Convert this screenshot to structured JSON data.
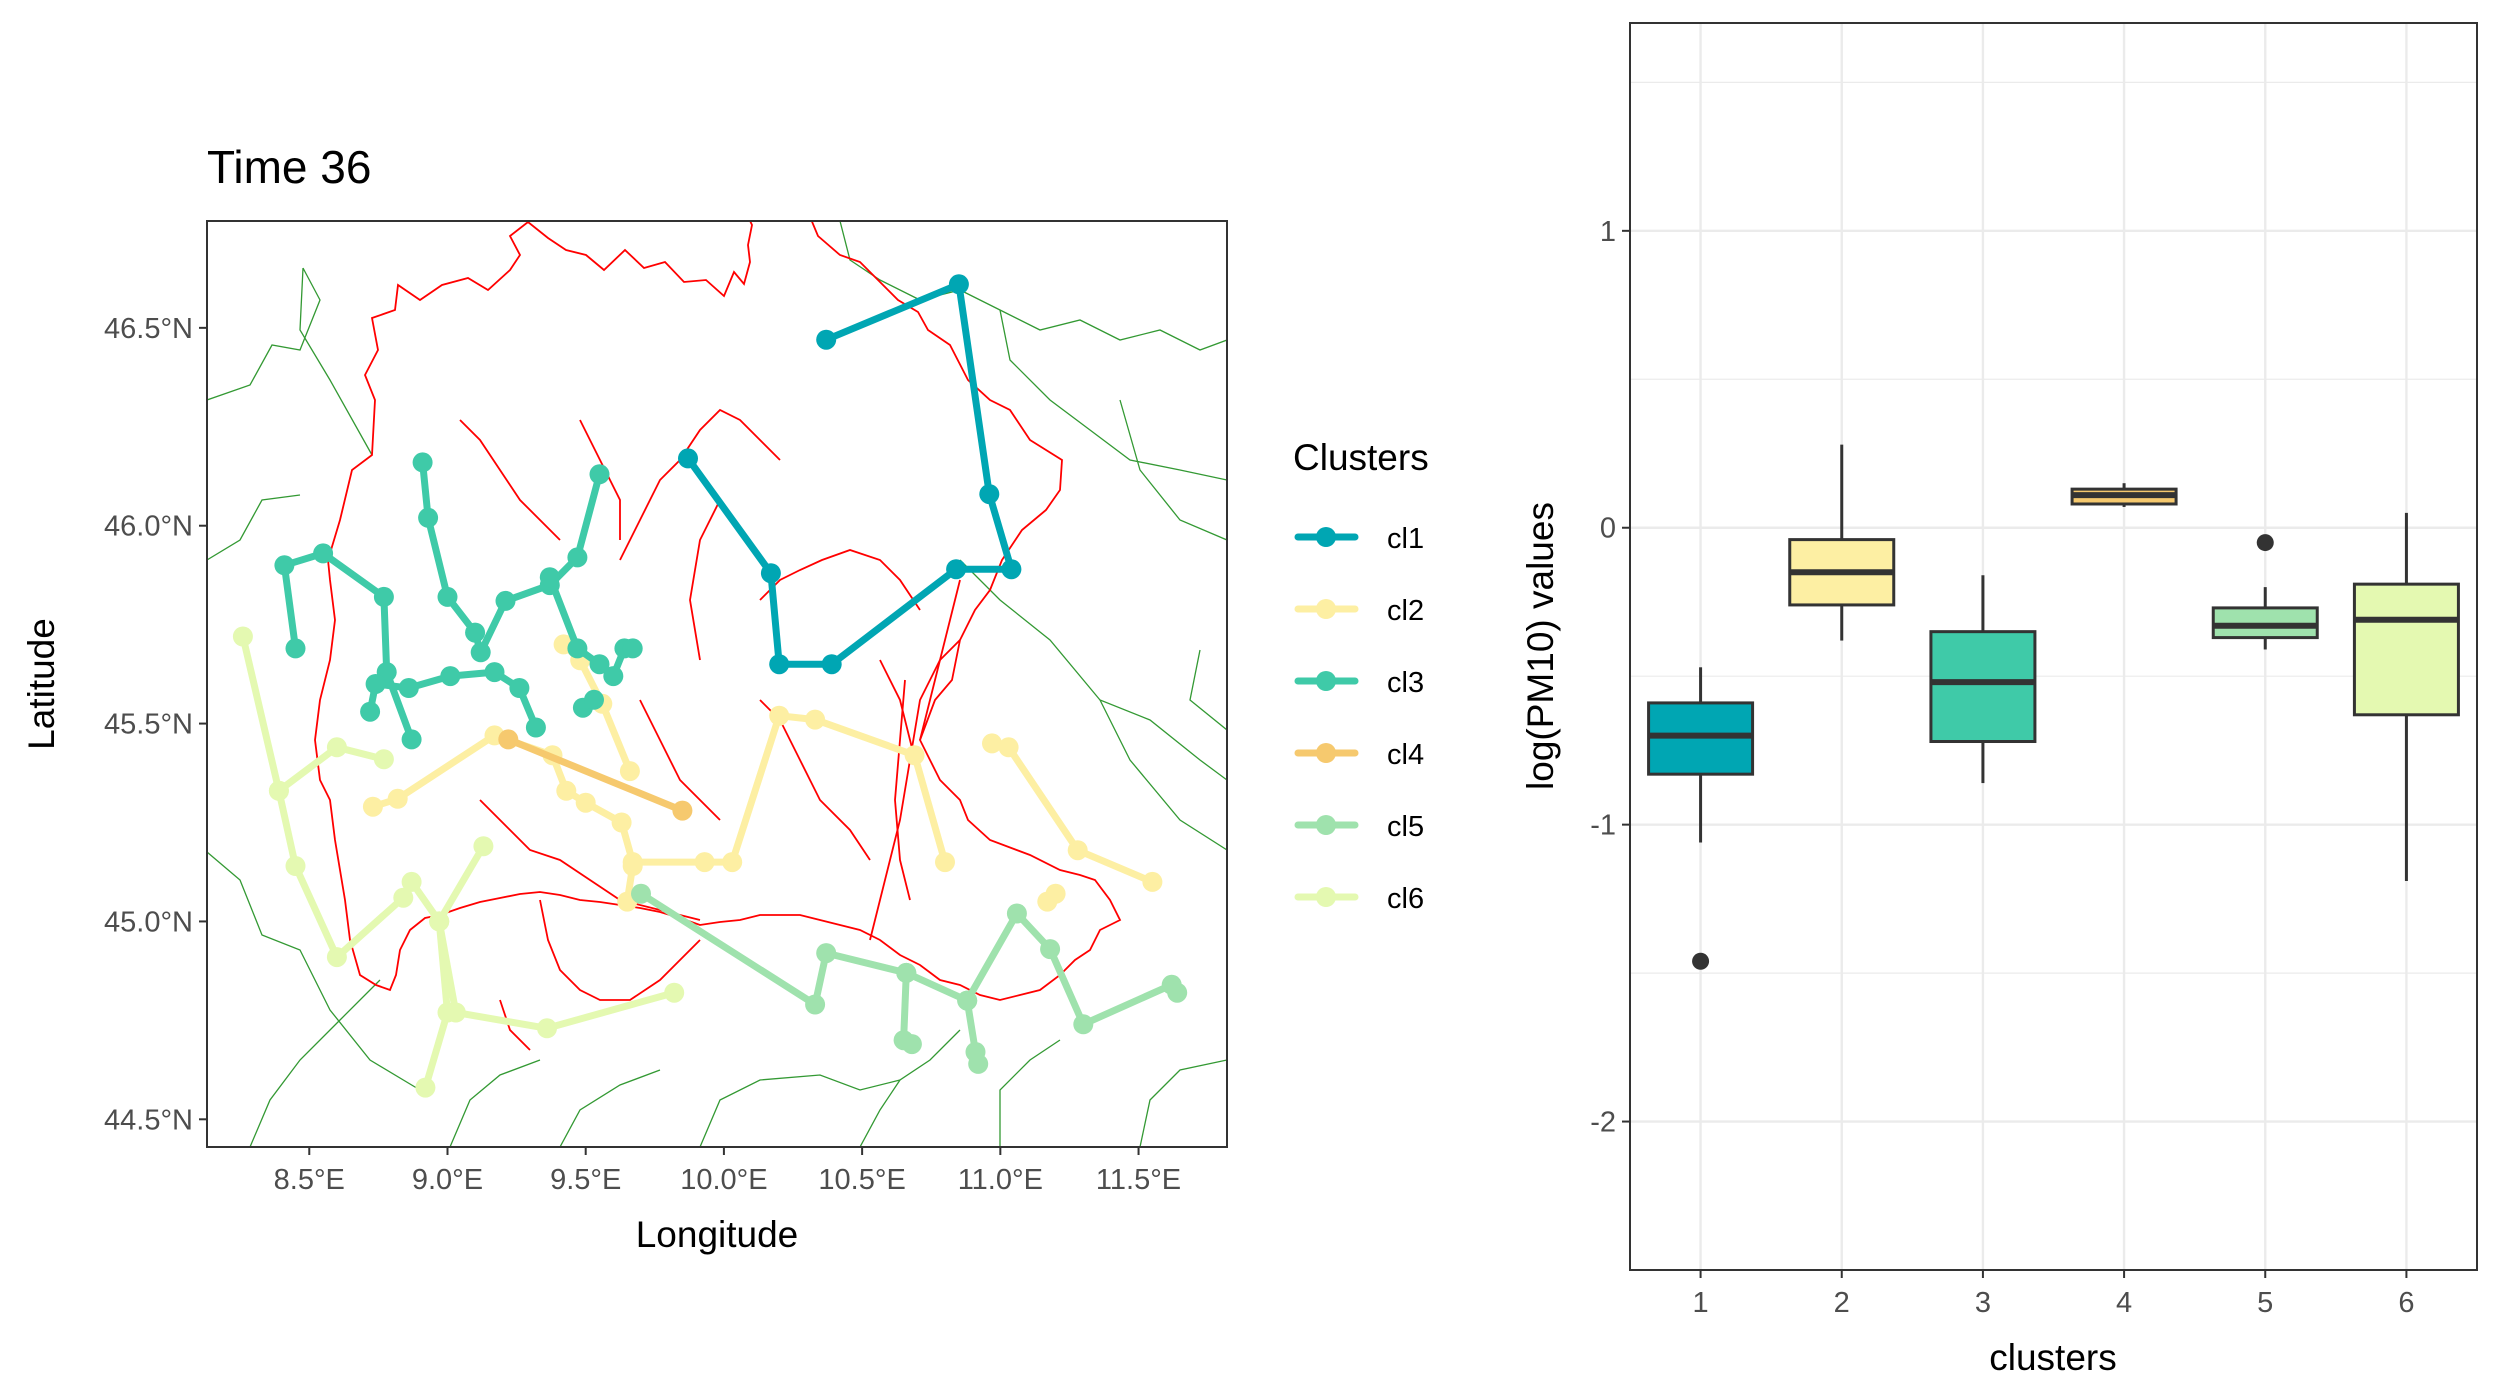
{
  "chart_data": [
    {
      "type": "scatter",
      "subtype": "map",
      "title": "Time 36",
      "xlabel": "Longitude",
      "ylabel": "Latitude",
      "xlim": [
        8.13,
        11.82
      ],
      "ylim": [
        44.43,
        46.77
      ],
      "x_ticks": [
        8.5,
        9.0,
        9.5,
        10.0,
        10.5,
        11.0,
        11.5
      ],
      "x_tick_labels": [
        "8.5°E",
        "9.0°E",
        "9.5°E",
        "10.0°E",
        "10.5°E",
        "11.0°E",
        "11.5°E"
      ],
      "y_ticks": [
        44.5,
        45.0,
        45.5,
        46.0,
        46.5
      ],
      "y_tick_labels": [
        "44.5°N",
        "45.0°N",
        "45.5°N",
        "46.0°N",
        "46.5°N"
      ],
      "legend": {
        "title": "Clusters",
        "position": "right",
        "entries": [
          "cl1",
          "cl2",
          "cl3",
          "cl4",
          "cl5",
          "cl6"
        ]
      },
      "grid": false,
      "boundary_colors": {
        "region_outline": "#ff0000",
        "province_lines": "#339933"
      },
      "series": [
        {
          "name": "cl1",
          "color": "#00a6b3",
          "segments": [
            [
              [
                10.37,
                46.47
              ],
              [
                10.85,
                46.61
              ],
              [
                10.96,
                46.08
              ],
              [
                11.04,
                45.89
              ],
              [
                10.84,
                45.89
              ],
              [
                10.39,
                45.65
              ],
              [
                10.2,
                45.65
              ],
              [
                10.17,
                45.88
              ],
              [
                9.87,
                46.17
              ]
            ]
          ]
        },
        {
          "name": "cl2",
          "color": "#fdefa3",
          "segments": [
            [
              [
                8.73,
                45.29
              ],
              [
                8.82,
                45.31
              ],
              [
                9.17,
                45.47
              ],
              [
                9.38,
                45.42
              ],
              [
                9.43,
                45.33
              ],
              [
                9.5,
                45.3
              ],
              [
                9.63,
                45.25
              ],
              [
                9.67,
                45.15
              ],
              [
                9.93,
                45.15
              ],
              [
                10.03,
                45.15
              ],
              [
                10.2,
                45.52
              ],
              [
                10.33,
                45.51
              ],
              [
                10.69,
                45.42
              ],
              [
                10.8,
                45.15
              ]
            ],
            [
              [
                9.42,
                45.7
              ],
              [
                9.48,
                45.66
              ],
              [
                9.56,
                45.55
              ],
              [
                9.66,
                45.38
              ]
            ],
            [
              [
                10.97,
                45.45
              ],
              [
                11.03,
                45.44
              ],
              [
                11.28,
                45.18
              ],
              [
                11.55,
                45.1
              ]
            ],
            [
              [
                9.65,
                45.05
              ],
              [
                9.67,
                45.14
              ]
            ],
            [
              [
                11.17,
                45.05
              ],
              [
                11.2,
                45.07
              ]
            ]
          ]
        },
        {
          "name": "cl3",
          "color": "#3fcaa8",
          "segments": [
            [
              [
                8.45,
                45.69
              ],
              [
                8.41,
                45.9
              ],
              [
                8.55,
                45.93
              ],
              [
                8.77,
                45.82
              ],
              [
                8.78,
                45.63
              ],
              [
                8.87,
                45.46
              ]
            ],
            [
              [
                8.91,
                46.16
              ],
              [
                8.93,
                46.02
              ],
              [
                9.0,
                45.82
              ],
              [
                9.1,
                45.73
              ],
              [
                9.12,
                45.68
              ],
              [
                9.21,
                45.81
              ],
              [
                9.37,
                45.85
              ],
              [
                9.47,
                45.92
              ],
              [
                9.55,
                46.13
              ]
            ],
            [
              [
                8.72,
                45.53
              ],
              [
                8.74,
                45.6
              ],
              [
                8.86,
                45.59
              ],
              [
                9.01,
                45.62
              ],
              [
                9.17,
                45.63
              ],
              [
                9.26,
                45.59
              ],
              [
                9.32,
                45.49
              ]
            ],
            [
              [
                9.37,
                45.87
              ],
              [
                9.47,
                45.69
              ],
              [
                9.55,
                45.65
              ],
              [
                9.6,
                45.62
              ],
              [
                9.64,
                45.69
              ],
              [
                9.67,
                45.69
              ]
            ],
            [
              [
                9.49,
                45.54
              ],
              [
                9.53,
                45.56
              ]
            ]
          ]
        },
        {
          "name": "cl4",
          "color": "#f6c96e",
          "segments": [
            [
              [
                9.22,
                45.46
              ],
              [
                9.85,
                45.28
              ]
            ]
          ]
        },
        {
          "name": "cl5",
          "color": "#9fe2ad",
          "segments": [
            [
              [
                9.7,
                45.07
              ],
              [
                10.33,
                44.79
              ],
              [
                10.37,
                44.92
              ],
              [
                10.66,
                44.87
              ],
              [
                10.65,
                44.7
              ],
              [
                10.68,
                44.69
              ]
            ],
            [
              [
                10.66,
                44.87
              ],
              [
                10.88,
                44.8
              ],
              [
                10.91,
                44.67
              ],
              [
                10.92,
                44.64
              ]
            ],
            [
              [
                10.88,
                44.8
              ],
              [
                11.06,
                45.02
              ],
              [
                11.18,
                44.93
              ],
              [
                11.3,
                44.74
              ],
              [
                11.62,
                44.84
              ],
              [
                11.64,
                44.82
              ]
            ]
          ]
        },
        {
          "name": "cl6",
          "color": "#e4f9b1",
          "segments": [
            [
              [
                8.26,
                45.72
              ],
              [
                8.39,
                45.33
              ],
              [
                8.45,
                45.14
              ],
              [
                8.6,
                44.91
              ],
              [
                8.84,
                45.06
              ],
              [
                8.87,
                45.1
              ],
              [
                8.97,
                45.0
              ],
              [
                9.03,
                44.77
              ],
              [
                9.36,
                44.73
              ],
              [
                9.82,
                44.82
              ]
            ],
            [
              [
                8.39,
                45.33
              ],
              [
                8.6,
                45.44
              ],
              [
                8.77,
                45.41
              ]
            ],
            [
              [
                8.97,
                45.0
              ],
              [
                9.0,
                44.77
              ],
              [
                8.92,
                44.58
              ]
            ],
            [
              [
                8.97,
                45.0
              ],
              [
                9.13,
                45.19
              ]
            ]
          ]
        }
      ]
    },
    {
      "type": "box",
      "title": "",
      "xlabel": "clusters",
      "ylabel": "log(PM10) values",
      "categories": [
        "1",
        "2",
        "3",
        "4",
        "5",
        "6"
      ],
      "ylim": [
        -2.5,
        1.7
      ],
      "y_ticks": [
        1,
        0,
        -1,
        -2
      ],
      "y_tick_labels": [
        "1",
        "0",
        "-1",
        "-2"
      ],
      "grid": true,
      "boxes": [
        {
          "category": "1",
          "color": "#00a6b3",
          "whisker_low": -1.06,
          "q1": -0.83,
          "median": -0.7,
          "q3": -0.59,
          "whisker_high": -0.47,
          "outliers": [
            -1.46
          ]
        },
        {
          "category": "2",
          "color": "#fdefa3",
          "whisker_low": -0.38,
          "q1": -0.26,
          "median": -0.15,
          "q3": -0.04,
          "whisker_high": 0.28,
          "outliers": []
        },
        {
          "category": "3",
          "color": "#3fcaa8",
          "whisker_low": -0.86,
          "q1": -0.72,
          "median": -0.52,
          "q3": -0.35,
          "whisker_high": -0.16,
          "outliers": []
        },
        {
          "category": "4",
          "color": "#f6c96e",
          "whisker_low": 0.07,
          "q1": 0.08,
          "median": 0.11,
          "q3": 0.13,
          "whisker_high": 0.15,
          "outliers": []
        },
        {
          "category": "5",
          "color": "#9fe2ad",
          "whisker_low": -0.41,
          "q1": -0.37,
          "median": -0.33,
          "q3": -0.27,
          "whisker_high": -0.2,
          "outliers": [
            -0.05
          ]
        },
        {
          "category": "6",
          "color": "#e4f9b1",
          "whisker_low": -1.19,
          "q1": -0.63,
          "median": -0.31,
          "q3": -0.19,
          "whisker_high": 0.05,
          "outliers": []
        }
      ]
    }
  ]
}
